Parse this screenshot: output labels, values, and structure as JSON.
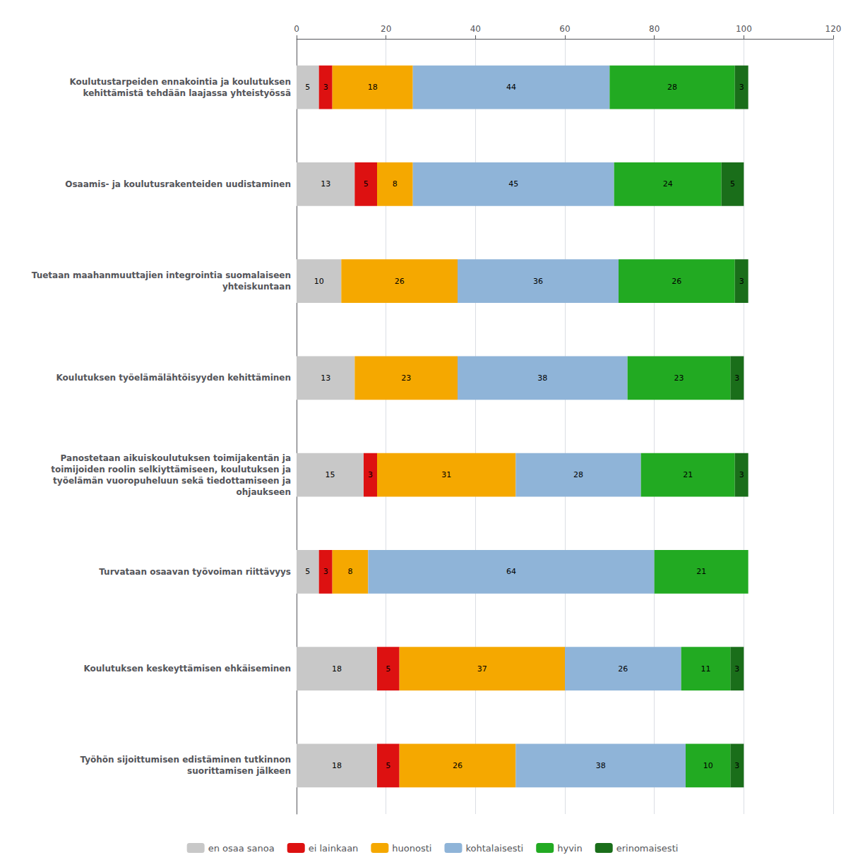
{
  "chart_data": {
    "type": "bar",
    "orientation": "horizontal",
    "stacked": true,
    "data_labels": true,
    "legend": "bottom",
    "grid": true,
    "categories": [
      "Koulutustarpeiden ennakointia ja koulutuksen\nkehittämistä tehdään laajassa yhteistyössä",
      "Osaamis- ja koulutusrakenteiden uudistaminen",
      "Tuetaan maahanmuuttajien integrointia suomalaiseen\nyhteiskuntaan",
      "Koulutuksen työelämälähtöisyyden kehittäminen",
      "Panostetaan aikuiskoulutuksen toimijakentän ja\ntoimijoiden roolin selkiyttämiseen, koulutuksen ja\ntyöelämän vuoropuheluun sekä tiedottamiseen ja\nohjaukseen",
      "Turvataan osaavan työvoiman riittävyys",
      "Koulutuksen keskeyttämisen ehkäiseminen",
      "Työhön sijoittumisen edistäminen tutkinnon\nsuorittamisen jälkeen"
    ],
    "series": [
      {
        "name": "en osaa sanoa",
        "color": "#c8c8c8",
        "values": [
          5,
          13,
          10,
          13,
          15,
          5,
          18,
          18
        ]
      },
      {
        "name": "ei lainkaan",
        "color": "#dd1111",
        "values": [
          3,
          5,
          0,
          0,
          3,
          3,
          5,
          5
        ]
      },
      {
        "name": "huonosti",
        "color": "#f5a800",
        "values": [
          18,
          8,
          26,
          23,
          31,
          8,
          37,
          26
        ]
      },
      {
        "name": "kohtalaisesti",
        "color": "#8fb4d8",
        "values": [
          44,
          45,
          36,
          38,
          28,
          64,
          26,
          38
        ]
      },
      {
        "name": "hyvin",
        "color": "#22aa22",
        "values": [
          28,
          24,
          26,
          23,
          21,
          21,
          11,
          10
        ]
      },
      {
        "name": "erinomaisesti",
        "color": "#1a6e1a",
        "values": [
          3,
          5,
          3,
          3,
          3,
          0,
          3,
          3
        ]
      }
    ],
    "xlim": [
      0,
      120
    ],
    "xticks": [
      0,
      20,
      40,
      60,
      80,
      100,
      120
    ]
  }
}
